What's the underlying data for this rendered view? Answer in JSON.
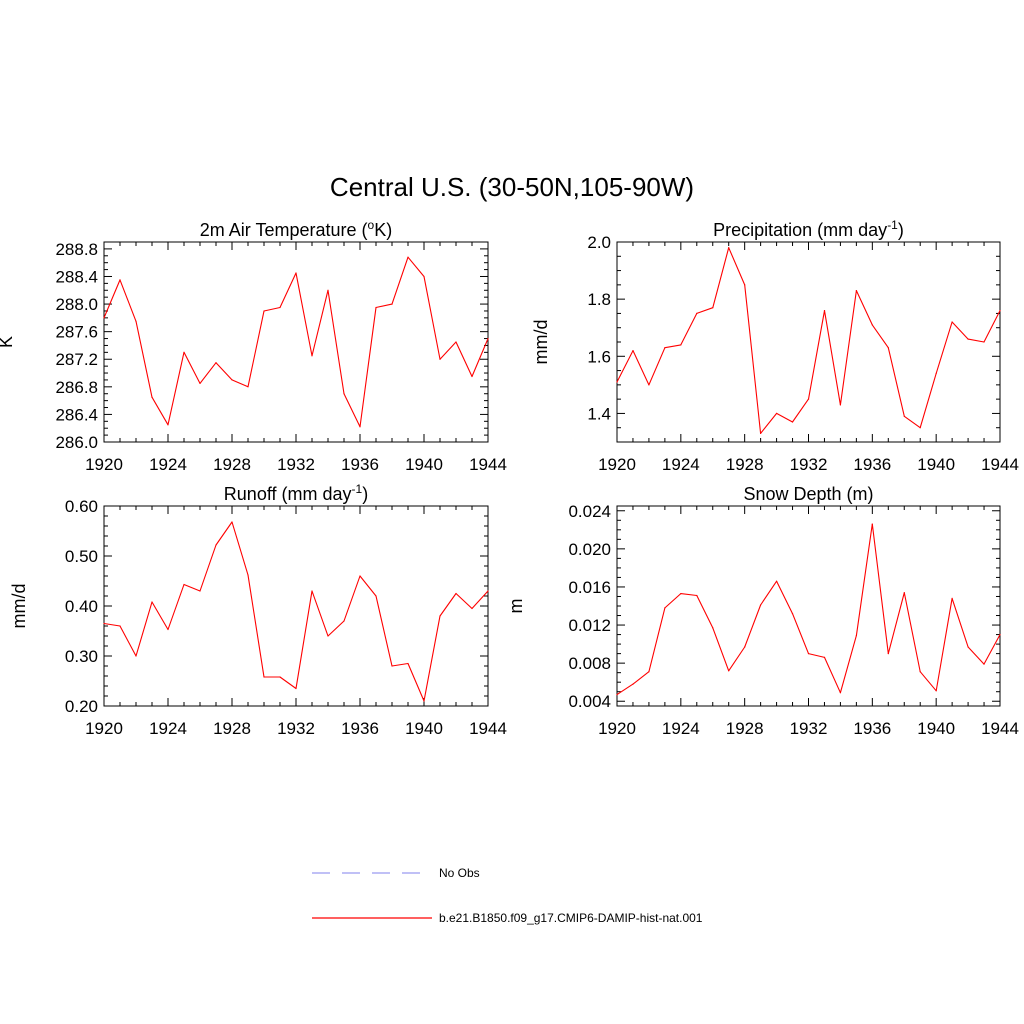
{
  "suptitle": "Central U.S. (30-50N,105-90W)",
  "legend": {
    "entries": [
      {
        "label": "No Obs",
        "color": "#9a9af0",
        "dash": true
      },
      {
        "label": "b.e21.B1850.f09_g17.CMIP6-DAMIP-hist-nat.001",
        "color": "#ff0000",
        "dash": false
      }
    ]
  },
  "chart_data": [
    {
      "type": "line",
      "title": "2m Air Temperature (°K)",
      "title_main": "2m Air Temperature (",
      "title_sup": "o",
      "title_end": "K)",
      "ylabel": "K",
      "xlim": [
        1920,
        1944
      ],
      "ylim": [
        286.0,
        288.9
      ],
      "xticks": [
        "1920",
        "1924",
        "1928",
        "1932",
        "1936",
        "1940",
        "1944"
      ],
      "yticks": [
        "286.0",
        "286.4",
        "286.8",
        "287.2",
        "287.6",
        "288.0",
        "288.4",
        "288.8"
      ],
      "series": [
        {
          "color": "#ff0000",
          "x": [
            1920,
            1921,
            1922,
            1923,
            1924,
            1925,
            1926,
            1927,
            1928,
            1929,
            1930,
            1931,
            1932,
            1933,
            1934,
            1935,
            1936,
            1937,
            1938,
            1939,
            1940,
            1941,
            1942,
            1943,
            1944
          ],
          "values": [
            287.8,
            288.35,
            287.75,
            286.65,
            286.25,
            287.3,
            286.85,
            287.15,
            286.9,
            286.8,
            287.9,
            287.95,
            288.45,
            287.25,
            288.2,
            286.7,
            286.22,
            287.95,
            288.0,
            288.68,
            288.4,
            287.2,
            287.45,
            286.95,
            287.5
          ]
        }
      ]
    },
    {
      "type": "line",
      "title": "Precipitation (mm day-1)",
      "title_main": "Precipitation (mm day",
      "title_sup": "-1",
      "title_end": ")",
      "ylabel": "mm/d",
      "xlim": [
        1920,
        1944
      ],
      "ylim": [
        1.3,
        2.0
      ],
      "xticks": [
        "1920",
        "1924",
        "1928",
        "1932",
        "1936",
        "1940",
        "1944"
      ],
      "yticks": [
        "1.4",
        "1.6",
        "1.8",
        "2.0"
      ],
      "series": [
        {
          "color": "#ff0000",
          "x": [
            1920,
            1921,
            1922,
            1923,
            1924,
            1925,
            1926,
            1927,
            1928,
            1929,
            1930,
            1931,
            1932,
            1933,
            1934,
            1935,
            1936,
            1937,
            1938,
            1939,
            1940,
            1941,
            1942,
            1943,
            1944
          ],
          "values": [
            1.51,
            1.62,
            1.5,
            1.63,
            1.64,
            1.75,
            1.77,
            1.98,
            1.85,
            1.33,
            1.4,
            1.37,
            1.45,
            1.76,
            1.43,
            1.83,
            1.71,
            1.63,
            1.39,
            1.35,
            1.54,
            1.72,
            1.66,
            1.65,
            1.76
          ]
        }
      ]
    },
    {
      "type": "line",
      "title": "Runoff (mm day-1)",
      "title_main": "Runoff (mm day",
      "title_sup": "-1",
      "title_end": ")",
      "ylabel": "mm/d",
      "xlim": [
        1920,
        1944
      ],
      "ylim": [
        0.2,
        0.6
      ],
      "xticks": [
        "1920",
        "1924",
        "1928",
        "1932",
        "1936",
        "1940",
        "1944"
      ],
      "yticks": [
        "0.20",
        "0.30",
        "0.40",
        "0.50",
        "0.60"
      ],
      "series": [
        {
          "color": "#ff0000",
          "x": [
            1920,
            1921,
            1922,
            1923,
            1924,
            1925,
            1926,
            1927,
            1928,
            1929,
            1930,
            1931,
            1932,
            1933,
            1934,
            1935,
            1936,
            1937,
            1938,
            1939,
            1940,
            1941,
            1942,
            1943,
            1944
          ],
          "values": [
            0.365,
            0.36,
            0.3,
            0.408,
            0.353,
            0.443,
            0.43,
            0.522,
            0.568,
            0.462,
            0.258,
            0.258,
            0.235,
            0.43,
            0.34,
            0.37,
            0.46,
            0.42,
            0.28,
            0.285,
            0.21,
            0.38,
            0.425,
            0.395,
            0.43
          ]
        }
      ]
    },
    {
      "type": "line",
      "title": "Snow Depth (m)",
      "title_main": "Snow Depth (m)",
      "title_sup": "",
      "title_end": "",
      "ylabel": "m",
      "xlim": [
        1920,
        1944
      ],
      "ylim": [
        0.0035,
        0.0245
      ],
      "xticks": [
        "1920",
        "1924",
        "1928",
        "1932",
        "1936",
        "1940",
        "1944"
      ],
      "yticks": [
        "0.004",
        "0.008",
        "0.012",
        "0.016",
        "0.020",
        "0.024"
      ],
      "series": [
        {
          "color": "#ff0000",
          "x": [
            1920,
            1921,
            1922,
            1923,
            1924,
            1925,
            1926,
            1927,
            1928,
            1929,
            1930,
            1931,
            1932,
            1933,
            1934,
            1935,
            1936,
            1937,
            1938,
            1939,
            1940,
            1941,
            1942,
            1943,
            1944
          ],
          "values": [
            0.0047,
            0.0058,
            0.0071,
            0.0138,
            0.0153,
            0.0151,
            0.0117,
            0.0072,
            0.0097,
            0.0141,
            0.0166,
            0.0132,
            0.009,
            0.0086,
            0.0049,
            0.0109,
            0.0226,
            0.009,
            0.0154,
            0.0071,
            0.0051,
            0.0148,
            0.0097,
            0.0079,
            0.011
          ]
        }
      ]
    }
  ]
}
